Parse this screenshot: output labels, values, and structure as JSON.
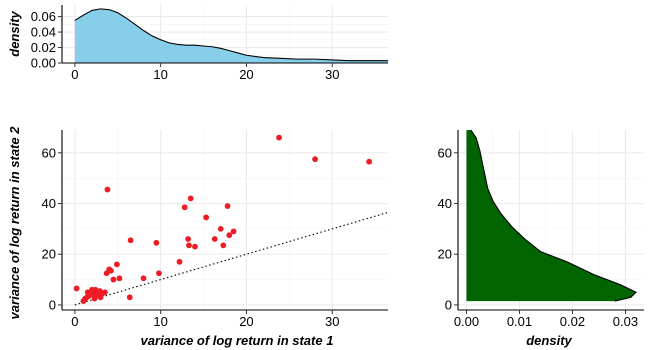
{
  "chart_data": [
    {
      "id": "top_density",
      "type": "area",
      "title": "",
      "xlabel": "",
      "ylabel": "density",
      "xlim": [
        -1.5,
        36.5
      ],
      "ylim": [
        0,
        0.075
      ],
      "x_ticks": [
        0,
        10,
        20,
        30
      ],
      "y_ticks": [
        0.0,
        0.02,
        0.04,
        0.06
      ],
      "y_tick_labels": [
        "0.00",
        "0.02",
        "0.04",
        "0.06"
      ],
      "fill": "#87ceeb",
      "x": [
        0,
        1,
        2,
        3,
        4,
        5,
        6,
        7,
        8,
        9,
        10,
        11,
        12,
        13,
        14,
        15,
        16,
        17,
        18,
        19,
        20,
        22,
        24,
        26,
        28,
        30,
        32,
        34,
        36.5
      ],
      "y": [
        0.055,
        0.062,
        0.068,
        0.07,
        0.069,
        0.065,
        0.058,
        0.05,
        0.042,
        0.035,
        0.03,
        0.026,
        0.024,
        0.023,
        0.023,
        0.022,
        0.021,
        0.019,
        0.016,
        0.013,
        0.01,
        0.007,
        0.006,
        0.005,
        0.005,
        0.004,
        0.003,
        0.003,
        0.003
      ]
    },
    {
      "id": "scatter",
      "type": "scatter",
      "title": "",
      "xlabel": "variance of log return in state 1",
      "ylabel": "variance of log return in state 2",
      "xlim": [
        -1.5,
        36.5
      ],
      "ylim": [
        -2,
        69
      ],
      "x_ticks": [
        0,
        10,
        20,
        30
      ],
      "y_ticks": [
        0,
        20,
        40,
        60
      ],
      "point_color": "#ee1c25",
      "reference_line": {
        "slope": 1,
        "intercept": 0,
        "style": "dotted"
      },
      "x": [
        0.2,
        1.0,
        1.2,
        1.4,
        1.5,
        1.6,
        1.8,
        2.0,
        2.1,
        2.3,
        2.4,
        2.5,
        2.7,
        2.9,
        3.0,
        3.2,
        3.5,
        3.7,
        3.8,
        4.0,
        4.2,
        4.5,
        4.9,
        5.2,
        6.4,
        6.5,
        8.0,
        9.5,
        9.8,
        12.2,
        12.8,
        13.2,
        13.3,
        13.5,
        14.0,
        15.3,
        16.3,
        17.0,
        17.3,
        17.8,
        18.0,
        18.5,
        23.8,
        28.0,
        34.3
      ],
      "y": [
        6.5,
        1.5,
        2.5,
        3.0,
        5.0,
        3.5,
        4.0,
        6.0,
        4.5,
        2.5,
        6.0,
        4.0,
        5.0,
        5.5,
        3.0,
        4.5,
        5.0,
        12.5,
        45.5,
        14.0,
        13.5,
        10.0,
        16.0,
        10.5,
        3.0,
        25.5,
        10.5,
        24.5,
        12.5,
        17.0,
        38.5,
        26.0,
        23.5,
        42.0,
        23.0,
        34.5,
        26.0,
        30.0,
        23.5,
        39.0,
        27.5,
        29.0,
        66.0,
        57.5,
        56.5
      ]
    },
    {
      "id": "right_density",
      "type": "area",
      "title": "",
      "xlabel": "density",
      "ylabel": "",
      "xlim": [
        -0.0016,
        0.0335
      ],
      "ylim": [
        -2,
        69
      ],
      "x_ticks": [
        0.0,
        0.01,
        0.02,
        0.03
      ],
      "x_tick_labels": [
        "0.00",
        "0.01",
        "0.02",
        "0.03"
      ],
      "y_ticks": [
        0,
        20,
        40,
        60
      ],
      "fill": "#006400",
      "density_values": [
        0.028,
        0.031,
        0.032,
        0.029,
        0.024,
        0.019,
        0.014,
        0.011,
        0.0085,
        0.0065,
        0.005,
        0.004,
        0.0035,
        0.003,
        0.0025,
        0.0018,
        0.0008
      ],
      "state2_values": [
        1.5,
        3.0,
        5.0,
        8.0,
        12.0,
        17.0,
        21.0,
        26.0,
        31.0,
        36.0,
        41.0,
        46.0,
        51.0,
        56.0,
        61.0,
        66.0,
        69.0
      ]
    }
  ]
}
